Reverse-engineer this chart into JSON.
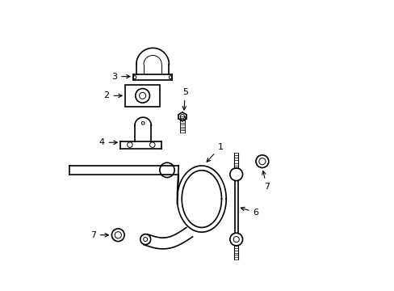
{
  "bg_color": "#ffffff",
  "line_color": "#000000",
  "line_width": 1.2,
  "thin_line": 0.7,
  "figsize": [
    4.89,
    3.6
  ],
  "dpi": 100
}
